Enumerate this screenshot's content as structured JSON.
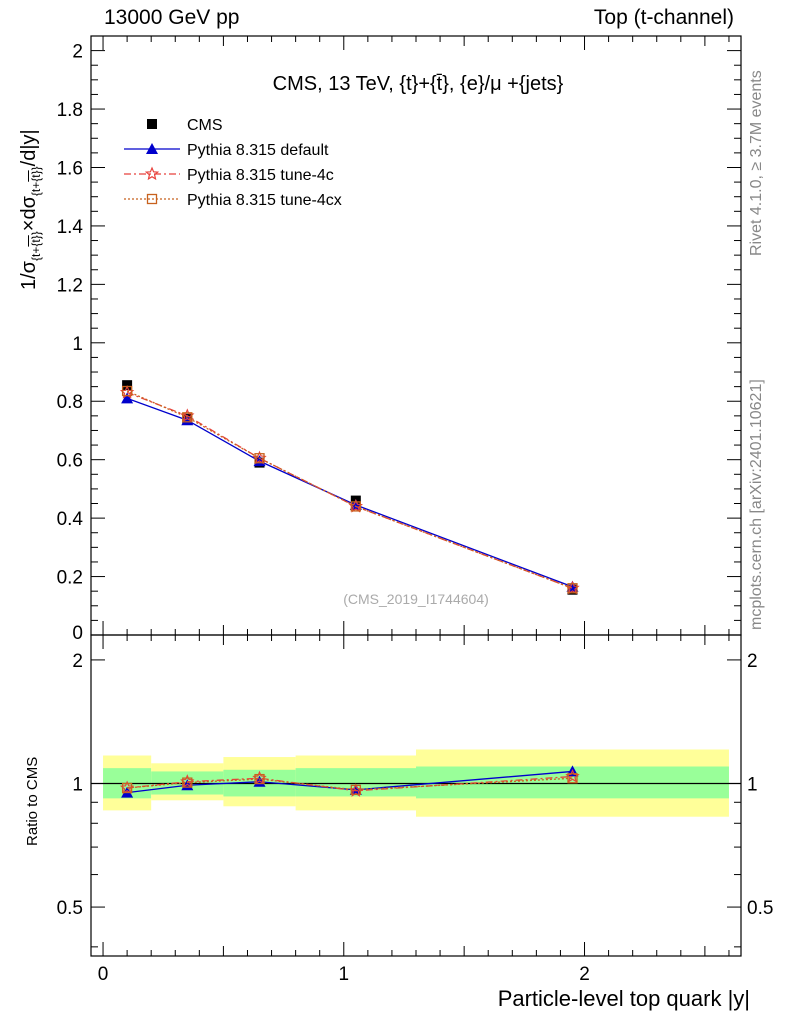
{
  "header": {
    "left": "13000 GeV pp",
    "right": "Top (t-channel)"
  },
  "side_labels": {
    "rivet": "Rivet 4.1.0, ≥ 3.7M events",
    "mcplots": "mcplots.cern.ch [arXiv:2401.10621]"
  },
  "colors": {
    "data": "#000000",
    "default": "#0000cc",
    "tune4c": "#e8423c",
    "tune4cx": "#c8621e",
    "band_inner": "#99ff99",
    "band_outer": "#ffff99"
  },
  "chart_data": [
    {
      "type": "line",
      "title": "CMS, 13 TeV, {t}+{t̄}, {e}/μ +{jets}",
      "ylabel": "1/σ_{t+t̄} × dσ_{t+t̄}/d|y|",
      "xlabel": "",
      "xlim": [
        -0.05,
        2.65
      ],
      "ylim": [
        0,
        2.05
      ],
      "yticks": [
        0.2,
        0.4,
        0.6,
        0.8,
        1,
        1.2,
        1.4,
        1.6,
        1.8,
        2
      ],
      "ytick_labels": [
        "0.2",
        "0.4",
        "0.6",
        "0.8",
        "1",
        "1.2",
        "1.4",
        "1.6",
        "1.8",
        "2"
      ],
      "y_zero_label": "0",
      "watermark": "(CMS_2019_I1744604)",
      "legend": [
        "CMS",
        "Pythia 8.315 default",
        "Pythia 8.315 tune-4c",
        "Pythia 8.315 tune-4cx"
      ],
      "legend_position": "top-left",
      "x": [
        0.1,
        0.35,
        0.65,
        1.05,
        1.95
      ],
      "series": [
        {
          "name": "CMS",
          "values": [
            0.855,
            0.74,
            0.59,
            0.46,
            0.155
          ]
        },
        {
          "name": "Pythia 8.315 default",
          "values": [
            0.81,
            0.735,
            0.595,
            0.445,
            0.165
          ]
        },
        {
          "name": "Pythia 8.315 tune-4c",
          "values": [
            0.83,
            0.75,
            0.605,
            0.44,
            0.16
          ]
        },
        {
          "name": "Pythia 8.315 tune-4cx",
          "values": [
            0.835,
            0.745,
            0.605,
            0.44,
            0.16
          ]
        }
      ]
    },
    {
      "type": "line",
      "title": "",
      "ylabel": "Ratio to CMS",
      "xlabel": "Particle-level top quark |y|",
      "xlim": [
        -0.05,
        2.65
      ],
      "ylim": [
        0.38,
        2.3
      ],
      "yscale": "log",
      "yticks": [
        0.5,
        1,
        2
      ],
      "ytick_labels": [
        "0.5",
        "1",
        "2"
      ],
      "xticks": [
        0,
        1,
        2
      ],
      "xtick_labels": [
        "0",
        "1",
        "2"
      ],
      "bins": [
        {
          "lo": 0.0,
          "hi": 0.2,
          "inner": [
            0.92,
            1.09
          ],
          "outer": [
            0.86,
            1.17
          ]
        },
        {
          "lo": 0.2,
          "hi": 0.5,
          "inner": [
            0.94,
            1.07
          ],
          "outer": [
            0.91,
            1.12
          ]
        },
        {
          "lo": 0.5,
          "hi": 0.8,
          "inner": [
            0.93,
            1.08
          ],
          "outer": [
            0.88,
            1.16
          ]
        },
        {
          "lo": 0.8,
          "hi": 1.3,
          "inner": [
            0.93,
            1.09
          ],
          "outer": [
            0.86,
            1.17
          ]
        },
        {
          "lo": 1.3,
          "hi": 2.6,
          "inner": [
            0.92,
            1.1
          ],
          "outer": [
            0.83,
            1.21
          ]
        }
      ],
      "x": [
        0.1,
        0.35,
        0.65,
        1.05,
        1.95
      ],
      "series": [
        {
          "name": "Pythia 8.315 default",
          "values": [
            0.95,
            0.99,
            1.01,
            0.965,
            1.07
          ]
        },
        {
          "name": "Pythia 8.315 tune-4c",
          "values": [
            0.975,
            1.01,
            1.03,
            0.96,
            1.04
          ]
        },
        {
          "name": "Pythia 8.315 tune-4cx",
          "values": [
            0.975,
            1.005,
            1.025,
            0.965,
            1.03
          ]
        }
      ]
    }
  ]
}
